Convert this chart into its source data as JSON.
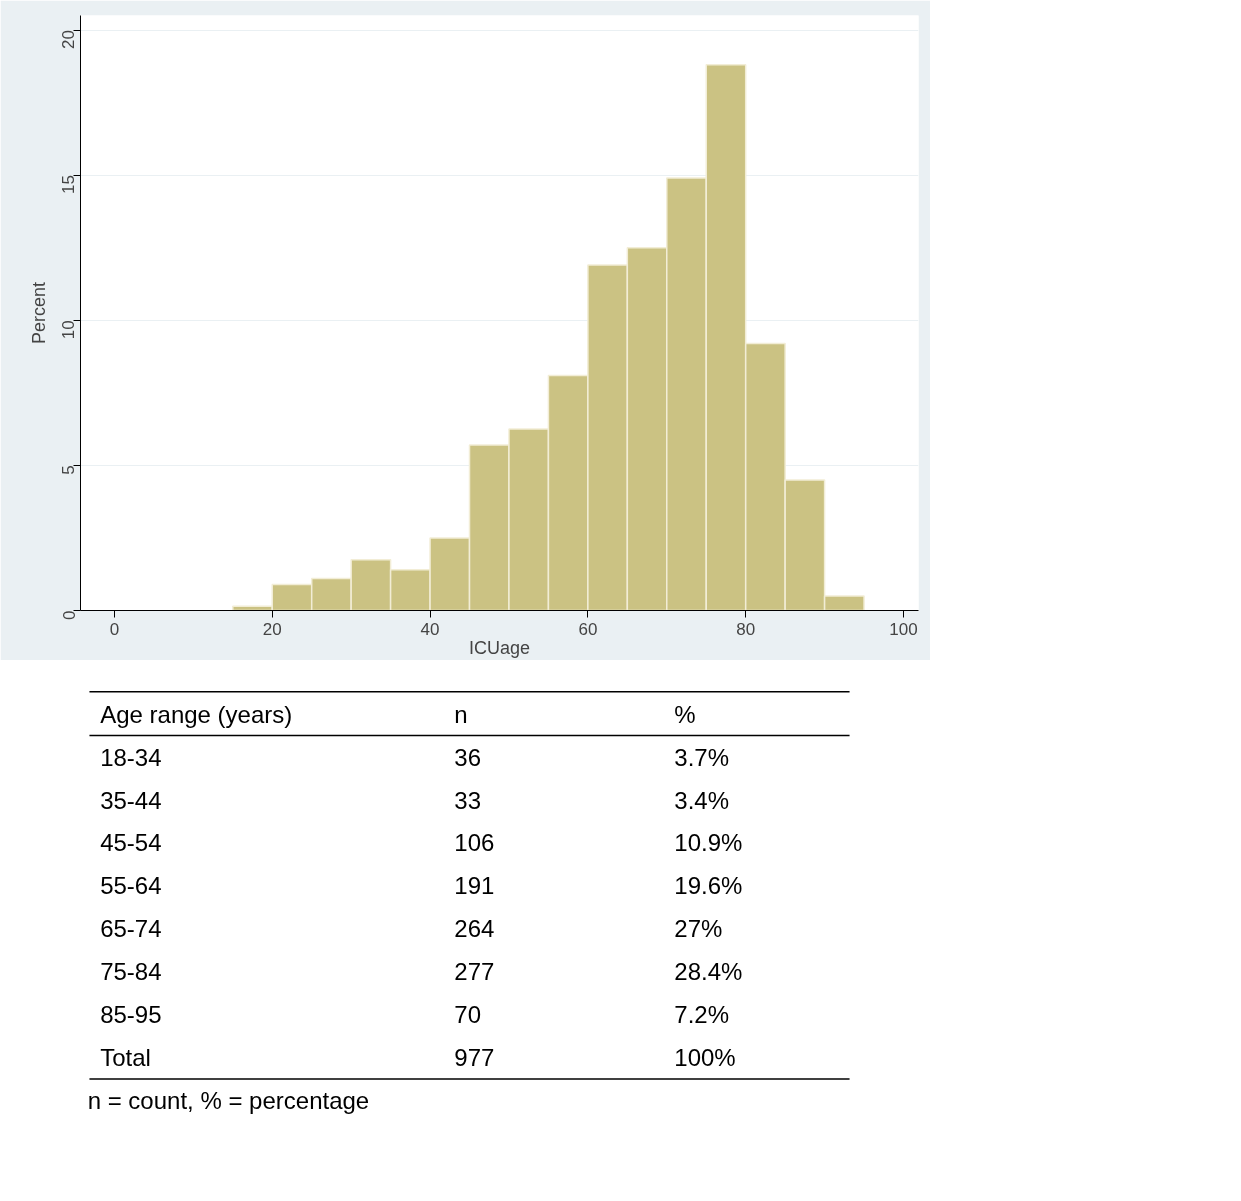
{
  "chart_data": [
    {
      "type": "histogram",
      "xlabel": "ICUage",
      "ylabel": "Percent",
      "bins": [
        15,
        20,
        25,
        30,
        35,
        40,
        45,
        50,
        55,
        60,
        65,
        70,
        75,
        80,
        85,
        90,
        95
      ],
      "values": [
        0.15,
        0.9,
        1.1,
        1.75,
        1.4,
        2.5,
        5.7,
        6.25,
        8.1,
        11.9,
        12.5,
        14.9,
        18.8,
        9.2,
        4.5,
        0.5
      ],
      "color": "#cbc283",
      "xlim": [
        -4.3,
        101.9
      ],
      "ylim": [
        0,
        20.5
      ],
      "xticks": [
        0,
        20,
        40,
        60,
        80,
        100
      ],
      "yticks": [
        0,
        5,
        10,
        15,
        20
      ],
      "grid": "y"
    },
    {
      "type": "other",
      "annotations": [
        "Age range (years)",
        "n",
        "%",
        "18-34",
        "36",
        "3.7%",
        "35-44",
        "33",
        "3.4%",
        "45-54",
        "106",
        "10.9%",
        "55-64",
        "191",
        "19.6%",
        "65-74",
        "264",
        "27%",
        "75-84",
        "277",
        "28.4%",
        "85-95",
        "70",
        "7.2%",
        "Total",
        "977",
        "100%",
        "n = count, % = percentage"
      ]
    }
  ]
}
